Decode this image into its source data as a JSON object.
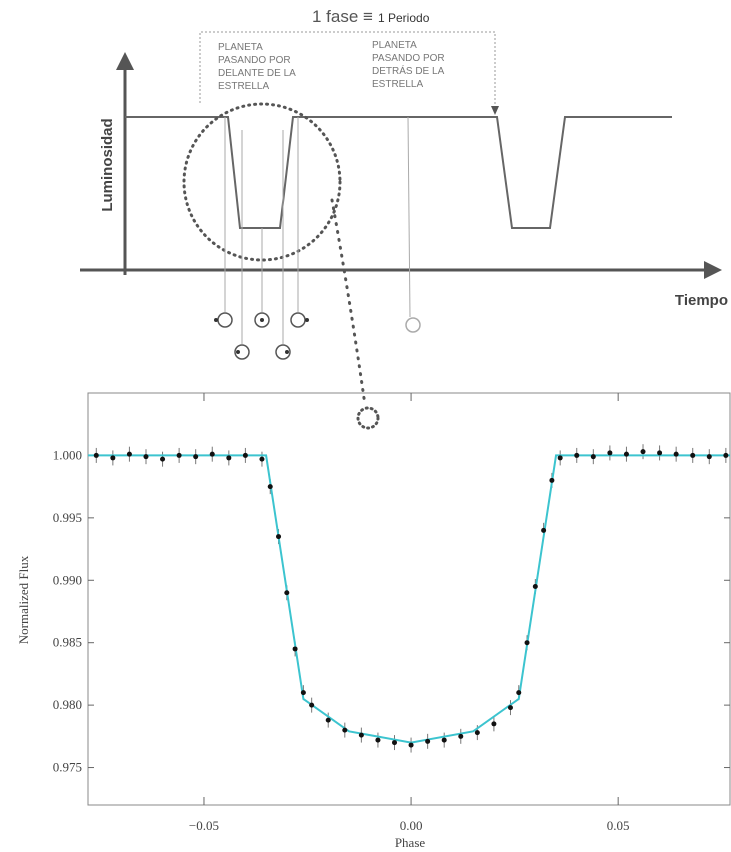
{
  "diagram": {
    "period_label": "1 fase ≡",
    "period_value": "1 Periodo",
    "front_label": [
      "PLANETA",
      "PASANDO POR",
      "DELANTE DE LA",
      "ESTRELLA"
    ],
    "back_label": [
      "PLANETA",
      "PASANDO POR",
      "DETRÁS DE LA",
      "ESTRELLA"
    ],
    "y_label": "Luminosidad",
    "x_label": "Tiempo"
  },
  "chart_data": {
    "type": "scatter",
    "x_label": "Phase",
    "y_label": "Normalized Flux",
    "color": "#111111",
    "x": [
      -0.076,
      -0.072,
      -0.068,
      -0.064,
      -0.06,
      -0.056,
      -0.052,
      -0.048,
      -0.044,
      -0.04,
      -0.036,
      -0.034,
      -0.032,
      -0.03,
      -0.028,
      -0.026,
      -0.024,
      -0.02,
      -0.016,
      -0.012,
      -0.008,
      -0.004,
      0,
      0.004,
      0.008,
      0.012,
      0.016,
      0.02,
      0.024,
      0.026,
      0.028,
      0.03,
      0.032,
      0.034,
      0.036,
      0.04,
      0.044,
      0.048,
      0.052,
      0.056,
      0.06,
      0.064,
      0.068,
      0.072,
      0.076
    ],
    "values": [
      1.0,
      0.9998,
      1.0001,
      0.9999,
      0.9997,
      1.0,
      0.9999,
      1.0001,
      0.9998,
      1.0,
      0.9997,
      0.9975,
      0.9935,
      0.989,
      0.9845,
      0.981,
      0.98,
      0.9788,
      0.978,
      0.9776,
      0.9772,
      0.977,
      0.9768,
      0.9771,
      0.9772,
      0.9775,
      0.9778,
      0.9785,
      0.9798,
      0.981,
      0.985,
      0.9895,
      0.994,
      0.998,
      0.9998,
      1.0,
      0.9999,
      1.0002,
      1.0001,
      1.0003,
      1.0002,
      1.0001,
      1.0,
      0.9999,
      1.0
    ],
    "errors": [
      0.0006,
      0.0006,
      0.0006,
      0.0006,
      0.0006,
      0.0006,
      0.0006,
      0.0006,
      0.0006,
      0.0006,
      0.0006,
      0.0006,
      0.0006,
      0.0006,
      0.0006,
      0.0006,
      0.0006,
      0.0006,
      0.0006,
      0.0006,
      0.0006,
      0.0006,
      0.0006,
      0.0006,
      0.0006,
      0.0006,
      0.0006,
      0.0006,
      0.0006,
      0.0006,
      0.0006,
      0.0006,
      0.0006,
      0.0006,
      0.0006,
      0.0006,
      0.0006,
      0.0006,
      0.0006,
      0.0006,
      0.0006,
      0.0006,
      0.0006,
      0.0006,
      0.0006
    ],
    "fit": {
      "color": "#3cc4cf",
      "x": [
        -0.078,
        -0.035,
        -0.026,
        -0.015,
        0,
        0.015,
        0.026,
        0.035,
        0.077
      ],
      "values": [
        1.0,
        1.0,
        0.9805,
        0.9779,
        0.977,
        0.9779,
        0.9805,
        1.0,
        1.0
      ]
    },
    "xlim": [
      -0.078,
      0.077
    ],
    "ylim": [
      0.972,
      1.005
    ],
    "xticks": [
      {
        "value": -0.05,
        "label": "−0.05"
      },
      {
        "value": 0,
        "label": "0.00"
      },
      {
        "value": 0.05,
        "label": "0.05"
      }
    ],
    "yticks": [
      {
        "value": 1.0,
        "label": "1.000"
      },
      {
        "value": 0.995,
        "label": "0.995"
      },
      {
        "value": 0.99,
        "label": "0.990"
      },
      {
        "value": 0.985,
        "label": "0.985"
      },
      {
        "value": 0.98,
        "label": "0.980"
      },
      {
        "value": 0.975,
        "label": "0.975"
      }
    ]
  }
}
